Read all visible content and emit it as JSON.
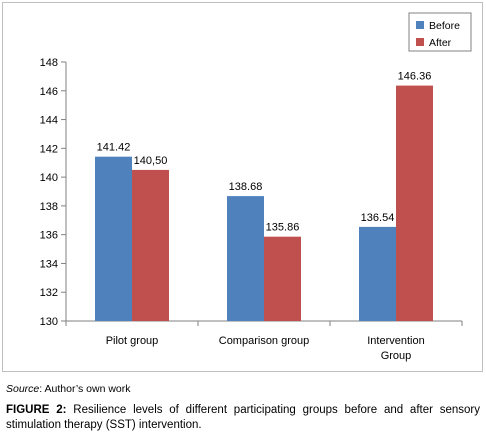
{
  "chart_data": {
    "type": "bar",
    "categories": [
      "Pilot group",
      "Comparison group",
      "Intervention Group"
    ],
    "category_lines": [
      [
        "Pilot group"
      ],
      [
        "Comparison group"
      ],
      [
        "Intervention",
        "Group"
      ]
    ],
    "series": [
      {
        "name": "Before",
        "color": "#4f81bd",
        "values": [
          141.42,
          138.68,
          136.54
        ],
        "labels": [
          "141.42",
          "138.68",
          "136.54"
        ]
      },
      {
        "name": "After",
        "color": "#c0504d",
        "values": [
          140.5,
          135.86,
          146.36
        ],
        "labels": [
          "140,50",
          "135.86",
          "146.36"
        ]
      }
    ],
    "ylim": [
      130,
      148
    ],
    "yticks": [
      130,
      132,
      134,
      136,
      138,
      140,
      142,
      144,
      146,
      148
    ],
    "grid": false,
    "legend": "top-right"
  },
  "source": {
    "label": "Source",
    "text": ": Author’s own work"
  },
  "caption": {
    "label": "FIGURE 2:",
    "text": " Resilience levels of different participating groups before and after sensory stimulation therapy (SST) intervention."
  }
}
